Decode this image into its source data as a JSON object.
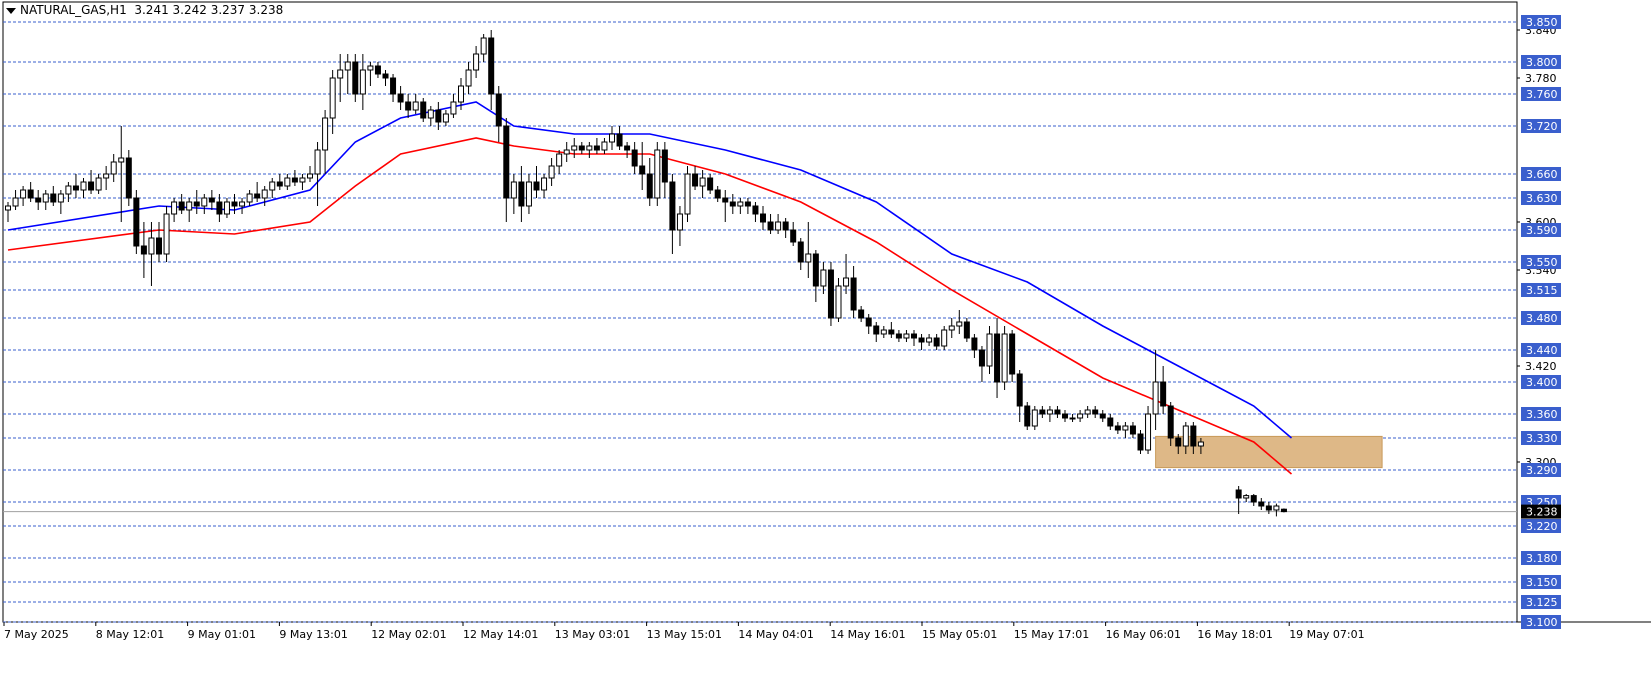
{
  "window": {
    "symbol": "NATURAL_GAS,H1",
    "ohlc": "3.241 3.242 3.237 3.238"
  },
  "colors": {
    "background": "#ffffff",
    "candle": "#000000",
    "level_line": "#3a5fcd",
    "level_label_bg": "#3a5fcd",
    "level_label_text": "#ffffff",
    "ma_fast": "#0000ff",
    "ma_slow": "#ff0000",
    "zone": "#deb887",
    "price_label_bg": "#000000"
  },
  "chart_data": {
    "type": "candlestick",
    "title": "NATURAL_GAS,H1",
    "ylim": [
      3.1,
      3.865
    ],
    "current_price": "3.238",
    "levels": [
      {
        "value": 3.85,
        "label": "3.850"
      },
      {
        "value": 3.8,
        "label": "3.800"
      },
      {
        "value": 3.76,
        "label": "3.760"
      },
      {
        "value": 3.72,
        "label": "3.720"
      },
      {
        "value": 3.66,
        "label": "3.660"
      },
      {
        "value": 3.63,
        "label": "3.630"
      },
      {
        "value": 3.59,
        "label": "3.590"
      },
      {
        "value": 3.55,
        "label": "3.550"
      },
      {
        "value": 3.515,
        "label": "3.515"
      },
      {
        "value": 3.48,
        "label": "3.480"
      },
      {
        "value": 3.44,
        "label": "3.440"
      },
      {
        "value": 3.4,
        "label": "3.400"
      },
      {
        "value": 3.36,
        "label": "3.360"
      },
      {
        "value": 3.33,
        "label": "3.330"
      },
      {
        "value": 3.29,
        "label": "3.290"
      },
      {
        "value": 3.25,
        "label": "3.250"
      },
      {
        "value": 3.22,
        "label": "3.220"
      },
      {
        "value": 3.18,
        "label": "3.180"
      },
      {
        "value": 3.15,
        "label": "3.150"
      },
      {
        "value": 3.125,
        "label": "3.125"
      },
      {
        "value": 3.1,
        "label": "3.100"
      }
    ],
    "axis_ticks": [
      {
        "value": 3.84,
        "label": "3.840"
      },
      {
        "value": 3.78,
        "label": "3.780"
      },
      {
        "value": 3.6,
        "label": "3.600"
      },
      {
        "value": 3.54,
        "label": "3.540"
      },
      {
        "value": 3.42,
        "label": "3.420"
      },
      {
        "value": 3.3,
        "label": "3.300"
      }
    ],
    "time_labels": [
      "7 May 2025",
      "8 May 12:01",
      "9 May 01:01",
      "9 May 13:01",
      "12 May 02:01",
      "12 May 14:01",
      "13 May 03:01",
      "13 May 15:01",
      "14 May 04:01",
      "14 May 16:01",
      "15 May 05:01",
      "15 May 17:01",
      "16 May 06:01",
      "16 May 18:01",
      "19 May 07:01"
    ],
    "candles": [
      [
        3.615,
        3.625,
        3.6,
        3.62
      ],
      [
        3.62,
        3.64,
        3.615,
        3.63
      ],
      [
        3.63,
        3.645,
        3.62,
        3.64
      ],
      [
        3.64,
        3.65,
        3.625,
        3.63
      ],
      [
        3.63,
        3.64,
        3.615,
        3.625
      ],
      [
        3.625,
        3.64,
        3.615,
        3.635
      ],
      [
        3.635,
        3.645,
        3.62,
        3.625
      ],
      [
        3.625,
        3.64,
        3.61,
        3.635
      ],
      [
        3.635,
        3.65,
        3.625,
        3.645
      ],
      [
        3.645,
        3.66,
        3.63,
        3.64
      ],
      [
        3.64,
        3.655,
        3.63,
        3.65
      ],
      [
        3.65,
        3.665,
        3.635,
        3.64
      ],
      [
        3.64,
        3.66,
        3.635,
        3.655
      ],
      [
        3.655,
        3.67,
        3.64,
        3.66
      ],
      [
        3.66,
        3.685,
        3.65,
        3.675
      ],
      [
        3.675,
        3.72,
        3.6,
        3.68
      ],
      [
        3.68,
        3.69,
        3.62,
        3.63
      ],
      [
        3.63,
        3.64,
        3.56,
        3.57
      ],
      [
        3.57,
        3.6,
        3.53,
        3.56
      ],
      [
        3.56,
        3.6,
        3.52,
        3.58
      ],
      [
        3.58,
        3.6,
        3.55,
        3.56
      ],
      [
        3.56,
        3.62,
        3.55,
        3.61
      ],
      [
        3.61,
        3.63,
        3.6,
        3.625
      ],
      [
        3.625,
        3.635,
        3.61,
        3.615
      ],
      [
        3.615,
        3.63,
        3.6,
        3.625
      ],
      [
        3.625,
        3.64,
        3.61,
        3.62
      ],
      [
        3.62,
        3.635,
        3.61,
        3.63
      ],
      [
        3.63,
        3.64,
        3.615,
        3.625
      ],
      [
        3.625,
        3.635,
        3.6,
        3.61
      ],
      [
        3.61,
        3.63,
        3.605,
        3.625
      ],
      [
        3.625,
        3.635,
        3.61,
        3.62
      ],
      [
        3.62,
        3.63,
        3.61,
        3.625
      ],
      [
        3.625,
        3.64,
        3.62,
        3.635
      ],
      [
        3.635,
        3.65,
        3.625,
        3.63
      ],
      [
        3.63,
        3.645,
        3.62,
        3.64
      ],
      [
        3.64,
        3.655,
        3.63,
        3.65
      ],
      [
        3.65,
        3.66,
        3.64,
        3.645
      ],
      [
        3.645,
        3.66,
        3.64,
        3.655
      ],
      [
        3.655,
        3.665,
        3.645,
        3.65
      ],
      [
        3.65,
        3.66,
        3.64,
        3.655
      ],
      [
        3.655,
        3.67,
        3.65,
        3.66
      ],
      [
        3.66,
        3.7,
        3.62,
        3.69
      ],
      [
        3.69,
        3.74,
        3.66,
        3.73
      ],
      [
        3.73,
        3.79,
        3.71,
        3.78
      ],
      [
        3.78,
        3.81,
        3.75,
        3.79
      ],
      [
        3.79,
        3.81,
        3.76,
        3.8
      ],
      [
        3.8,
        3.81,
        3.75,
        3.76
      ],
      [
        3.76,
        3.81,
        3.74,
        3.79
      ],
      [
        3.79,
        3.8,
        3.77,
        3.795
      ],
      [
        3.795,
        3.8,
        3.78,
        3.785
      ],
      [
        3.785,
        3.79,
        3.77,
        3.78
      ],
      [
        3.78,
        3.785,
        3.75,
        3.76
      ],
      [
        3.76,
        3.77,
        3.74,
        3.75
      ],
      [
        3.75,
        3.76,
        3.73,
        3.74
      ],
      [
        3.74,
        3.76,
        3.735,
        3.75
      ],
      [
        3.75,
        3.755,
        3.725,
        3.73
      ],
      [
        3.73,
        3.745,
        3.72,
        3.74
      ],
      [
        3.74,
        3.75,
        3.715,
        3.725
      ],
      [
        3.725,
        3.74,
        3.72,
        3.735
      ],
      [
        3.735,
        3.76,
        3.73,
        3.75
      ],
      [
        3.75,
        3.78,
        3.74,
        3.77
      ],
      [
        3.77,
        3.8,
        3.76,
        3.79
      ],
      [
        3.79,
        3.82,
        3.78,
        3.81
      ],
      [
        3.81,
        3.835,
        3.8,
        3.83
      ],
      [
        3.83,
        3.84,
        3.74,
        3.76
      ],
      [
        3.76,
        3.77,
        3.7,
        3.72
      ],
      [
        3.72,
        3.73,
        3.6,
        3.63
      ],
      [
        3.63,
        3.66,
        3.61,
        3.65
      ],
      [
        3.65,
        3.67,
        3.6,
        3.62
      ],
      [
        3.62,
        3.66,
        3.61,
        3.65
      ],
      [
        3.65,
        3.67,
        3.63,
        3.64
      ],
      [
        3.64,
        3.66,
        3.63,
        3.655
      ],
      [
        3.655,
        3.68,
        3.645,
        3.67
      ],
      [
        3.67,
        3.69,
        3.66,
        3.685
      ],
      [
        3.685,
        3.7,
        3.675,
        3.69
      ],
      [
        3.69,
        3.705,
        3.68,
        3.695
      ],
      [
        3.695,
        3.7,
        3.685,
        3.69
      ],
      [
        3.69,
        3.7,
        3.68,
        3.695
      ],
      [
        3.695,
        3.705,
        3.685,
        3.69
      ],
      [
        3.69,
        3.705,
        3.685,
        3.7
      ],
      [
        3.7,
        3.72,
        3.69,
        3.71
      ],
      [
        3.71,
        3.72,
        3.69,
        3.695
      ],
      [
        3.695,
        3.7,
        3.68,
        3.69
      ],
      [
        3.69,
        3.7,
        3.66,
        3.67
      ],
      [
        3.67,
        3.7,
        3.64,
        3.66
      ],
      [
        3.66,
        3.68,
        3.62,
        3.63
      ],
      [
        3.63,
        3.7,
        3.62,
        3.69
      ],
      [
        3.69,
        3.7,
        3.63,
        3.65
      ],
      [
        3.65,
        3.66,
        3.56,
        3.59
      ],
      [
        3.59,
        3.62,
        3.57,
        3.61
      ],
      [
        3.61,
        3.67,
        3.6,
        3.66
      ],
      [
        3.66,
        3.67,
        3.64,
        3.645
      ],
      [
        3.645,
        3.665,
        3.63,
        3.655
      ],
      [
        3.655,
        3.66,
        3.635,
        3.64
      ],
      [
        3.64,
        3.645,
        3.625,
        3.63
      ],
      [
        3.63,
        3.64,
        3.6,
        3.625
      ],
      [
        3.625,
        3.635,
        3.61,
        3.62
      ],
      [
        3.62,
        3.63,
        3.61,
        3.625
      ],
      [
        3.625,
        3.63,
        3.61,
        3.62
      ],
      [
        3.62,
        3.625,
        3.6,
        3.61
      ],
      [
        3.61,
        3.62,
        3.59,
        3.6
      ],
      [
        3.6,
        3.61,
        3.585,
        3.59
      ],
      [
        3.59,
        3.61,
        3.585,
        3.6
      ],
      [
        3.6,
        3.605,
        3.58,
        3.59
      ],
      [
        3.59,
        3.6,
        3.57,
        3.575
      ],
      [
        3.575,
        3.58,
        3.54,
        3.55
      ],
      [
        3.55,
        3.6,
        3.53,
        3.56
      ],
      [
        3.56,
        3.565,
        3.5,
        3.52
      ],
      [
        3.52,
        3.55,
        3.51,
        3.54
      ],
      [
        3.54,
        3.55,
        3.47,
        3.48
      ],
      [
        3.48,
        3.53,
        3.475,
        3.52
      ],
      [
        3.52,
        3.56,
        3.51,
        3.53
      ],
      [
        3.53,
        3.545,
        3.48,
        3.49
      ],
      [
        3.49,
        3.495,
        3.475,
        3.48
      ],
      [
        3.48,
        3.485,
        3.46,
        3.47
      ],
      [
        3.47,
        3.475,
        3.45,
        3.46
      ],
      [
        3.46,
        3.47,
        3.455,
        3.465
      ],
      [
        3.465,
        3.475,
        3.455,
        3.46
      ],
      [
        3.46,
        3.465,
        3.45,
        3.455
      ],
      [
        3.455,
        3.465,
        3.45,
        3.46
      ],
      [
        3.46,
        3.465,
        3.445,
        3.455
      ],
      [
        3.455,
        3.46,
        3.44,
        3.45
      ],
      [
        3.45,
        3.46,
        3.445,
        3.455
      ],
      [
        3.455,
        3.46,
        3.44,
        3.445
      ],
      [
        3.445,
        3.47,
        3.44,
        3.465
      ],
      [
        3.465,
        3.48,
        3.455,
        3.47
      ],
      [
        3.47,
        3.49,
        3.46,
        3.475
      ],
      [
        3.475,
        3.48,
        3.45,
        3.455
      ],
      [
        3.455,
        3.46,
        3.43,
        3.44
      ],
      [
        3.44,
        3.445,
        3.4,
        3.42
      ],
      [
        3.42,
        3.47,
        3.41,
        3.46
      ],
      [
        3.46,
        3.48,
        3.38,
        3.4
      ],
      [
        3.4,
        3.47,
        3.39,
        3.46
      ],
      [
        3.46,
        3.465,
        3.4,
        3.41
      ],
      [
        3.41,
        3.415,
        3.35,
        3.37
      ],
      [
        3.37,
        3.375,
        3.34,
        3.345
      ],
      [
        3.345,
        3.37,
        3.34,
        3.365
      ],
      [
        3.365,
        3.37,
        3.355,
        3.36
      ],
      [
        3.36,
        3.37,
        3.35,
        3.365
      ],
      [
        3.365,
        3.37,
        3.355,
        3.36
      ],
      [
        3.36,
        3.365,
        3.35,
        3.355
      ],
      [
        3.355,
        3.36,
        3.35,
        3.355
      ],
      [
        3.355,
        3.365,
        3.35,
        3.36
      ],
      [
        3.36,
        3.37,
        3.355,
        3.365
      ],
      [
        3.365,
        3.37,
        3.355,
        3.36
      ],
      [
        3.36,
        3.365,
        3.35,
        3.355
      ],
      [
        3.355,
        3.36,
        3.34,
        3.345
      ],
      [
        3.345,
        3.35,
        3.335,
        3.34
      ],
      [
        3.34,
        3.35,
        3.33,
        3.345
      ],
      [
        3.345,
        3.35,
        3.33,
        3.335
      ],
      [
        3.335,
        3.34,
        3.31,
        3.315
      ],
      [
        3.315,
        3.37,
        3.31,
        3.36
      ],
      [
        3.36,
        3.44,
        3.34,
        3.4
      ],
      [
        3.4,
        3.42,
        3.36,
        3.37
      ],
      [
        3.37,
        3.375,
        3.32,
        3.33
      ],
      [
        3.33,
        3.335,
        3.31,
        3.32
      ],
      [
        3.32,
        3.35,
        3.31,
        3.345
      ],
      [
        3.345,
        3.35,
        3.31,
        3.32
      ],
      [
        3.32,
        3.33,
        3.31,
        3.325
      ],
      null,
      null,
      null,
      null,
      [
        3.265,
        3.27,
        3.235,
        3.255
      ],
      [
        3.255,
        3.26,
        3.25,
        3.258
      ],
      [
        3.258,
        3.26,
        3.245,
        3.25
      ],
      [
        3.25,
        3.255,
        3.24,
        3.245
      ],
      [
        3.245,
        3.25,
        3.235,
        3.24
      ],
      [
        3.24,
        3.248,
        3.232,
        3.245
      ],
      [
        3.241,
        3.242,
        3.237,
        3.238
      ]
    ],
    "ma_fast": [
      [
        0,
        3.59
      ],
      [
        20,
        3.62
      ],
      [
        30,
        3.615
      ],
      [
        40,
        3.64
      ],
      [
        46,
        3.7
      ],
      [
        52,
        3.73
      ],
      [
        62,
        3.75
      ],
      [
        67,
        3.72
      ],
      [
        75,
        3.71
      ],
      [
        85,
        3.71
      ],
      [
        95,
        3.69
      ],
      [
        105,
        3.665
      ],
      [
        115,
        3.625
      ],
      [
        125,
        3.56
      ],
      [
        135,
        3.525
      ],
      [
        145,
        3.47
      ],
      [
        155,
        3.42
      ],
      [
        160,
        3.395
      ],
      [
        165,
        3.37
      ],
      [
        170,
        3.33
      ]
    ],
    "ma_slow": [
      [
        0,
        3.565
      ],
      [
        20,
        3.59
      ],
      [
        30,
        3.585
      ],
      [
        40,
        3.6
      ],
      [
        46,
        3.645
      ],
      [
        52,
        3.685
      ],
      [
        62,
        3.705
      ],
      [
        67,
        3.695
      ],
      [
        75,
        3.685
      ],
      [
        85,
        3.685
      ],
      [
        95,
        3.66
      ],
      [
        105,
        3.625
      ],
      [
        115,
        3.575
      ],
      [
        125,
        3.515
      ],
      [
        135,
        3.46
      ],
      [
        145,
        3.405
      ],
      [
        155,
        3.365
      ],
      [
        160,
        3.345
      ],
      [
        165,
        3.325
      ],
      [
        170,
        3.285
      ]
    ],
    "zone": {
      "x_from": 152,
      "x_to": 182,
      "y_from": 3.293,
      "y_to": 3.332
    }
  }
}
